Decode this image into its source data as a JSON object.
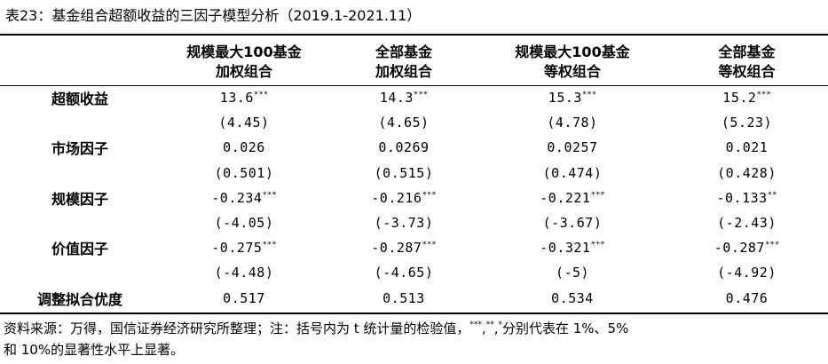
{
  "title": "表23：基金组合超额收益的三因子模型分析（2019.1-2021.11）",
  "columns": [
    {
      "line1": "规模最大100基金",
      "line2": "加权组合"
    },
    {
      "line1": "全部基金",
      "line2": "加权组合"
    },
    {
      "line1": "规模最大100基金",
      "line2": "等权组合"
    },
    {
      "line1": "全部基金",
      "line2": "等权组合"
    }
  ],
  "rows": [
    {
      "label": "超额收益",
      "values": [
        {
          "v": "13.6",
          "sig": "***"
        },
        {
          "v": "14.3",
          "sig": "***"
        },
        {
          "v": "15.3",
          "sig": "***"
        },
        {
          "v": "15.2",
          "sig": "***"
        }
      ],
      "tstats": [
        "(4.45)",
        "(4.65)",
        "(4.78)",
        "(5.23)"
      ]
    },
    {
      "label": "市场因子",
      "values": [
        {
          "v": "0.026",
          "sig": ""
        },
        {
          "v": "0.0269",
          "sig": ""
        },
        {
          "v": "0.0257",
          "sig": ""
        },
        {
          "v": "0.021",
          "sig": ""
        }
      ],
      "tstats": [
        "(0.501)",
        "(0.515)",
        "(0.474)",
        "(0.428)"
      ]
    },
    {
      "label": "规模因子",
      "values": [
        {
          "v": "-0.234",
          "sig": "***"
        },
        {
          "v": "-0.216",
          "sig": "***"
        },
        {
          "v": "-0.221",
          "sig": "***"
        },
        {
          "v": "-0.133",
          "sig": "**"
        }
      ],
      "tstats": [
        "(-4.05)",
        "(-3.73)",
        "(-3.67)",
        "(-2.43)"
      ]
    },
    {
      "label": "价值因子",
      "values": [
        {
          "v": "-0.275",
          "sig": "***"
        },
        {
          "v": "-0.287",
          "sig": "***"
        },
        {
          "v": "-0.321",
          "sig": "***"
        },
        {
          "v": "-0.287",
          "sig": "***"
        }
      ],
      "tstats": [
        "(-4.48)",
        "(-4.65)",
        "(-5)",
        "(-4.92)"
      ]
    },
    {
      "label": "调整拟合优度",
      "values": [
        {
          "v": "0.517",
          "sig": ""
        },
        {
          "v": "0.513",
          "sig": ""
        },
        {
          "v": "0.534",
          "sig": ""
        },
        {
          "v": "0.476",
          "sig": ""
        }
      ],
      "tstats": []
    }
  ],
  "note": {
    "part1": "资料来源：万得，国信证券经济研究所整理；注：括号内为 t 统计量的检验值，",
    "sig3": "***",
    "sep1": ",",
    "sig2": "**",
    "sep2": ",",
    "sig1": "*",
    "part2": "分别代表在 1%、5%",
    "line2": "和 10%的显著性水平上显著。"
  }
}
